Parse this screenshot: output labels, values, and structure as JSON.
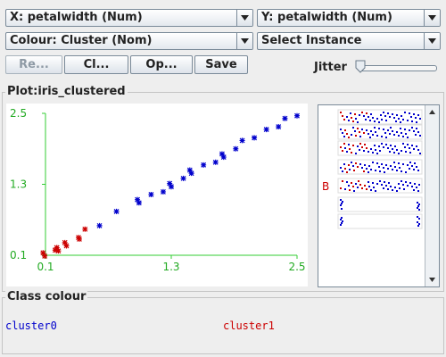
{
  "selectors": {
    "x_axis": "X: petalwidth (Num)",
    "y_axis": "Y: petalwidth (Num)",
    "colour": "Colour: Cluster (Nom)",
    "instance": "Select Instance"
  },
  "buttons": {
    "reset": "Re...",
    "clear": "Cl...",
    "open": "Op...",
    "save": "Save"
  },
  "jitter": {
    "label": "Jitter",
    "value": 0
  },
  "plot": {
    "title": "Plot:iris_clustered",
    "side_label": "B"
  },
  "chart_data": {
    "type": "scatter",
    "xlim": [
      0.1,
      2.5
    ],
    "ylim": [
      0.1,
      2.5
    ],
    "x_ticks": [
      "0.1",
      "1.3",
      "2.5"
    ],
    "y_ticks": [
      "2.5",
      "1.3",
      "0.1"
    ],
    "series": [
      {
        "name": "cluster0",
        "color": "#0000cc",
        "x": [
          1.0,
          1.0,
          1.1,
          1.2,
          1.3,
          1.3,
          1.4,
          1.5,
          1.5,
          1.6,
          1.7,
          1.8,
          1.8,
          1.9,
          2.0,
          2.1,
          2.2,
          2.3,
          2.4,
          2.5,
          0.6,
          0.8
        ],
        "y": [
          1.0,
          1.0,
          1.1,
          1.2,
          1.3,
          1.3,
          1.4,
          1.5,
          1.5,
          1.6,
          1.7,
          1.8,
          1.8,
          1.9,
          2.0,
          2.1,
          2.2,
          2.3,
          2.4,
          2.5,
          0.6,
          0.8
        ]
      },
      {
        "name": "cluster1",
        "color": "#cc0000",
        "x": [
          0.1,
          0.2,
          0.2,
          0.2,
          0.3,
          0.3,
          0.4,
          0.5,
          0.1,
          0.2,
          0.4
        ],
        "y": [
          0.1,
          0.2,
          0.2,
          0.2,
          0.3,
          0.3,
          0.4,
          0.5,
          0.1,
          0.2,
          0.4
        ]
      }
    ]
  },
  "class_colour": {
    "title": "Class colour",
    "items": [
      {
        "label": "cluster0",
        "color": "#0000cc"
      },
      {
        "label": "cluster1",
        "color": "#cc0000"
      }
    ]
  }
}
